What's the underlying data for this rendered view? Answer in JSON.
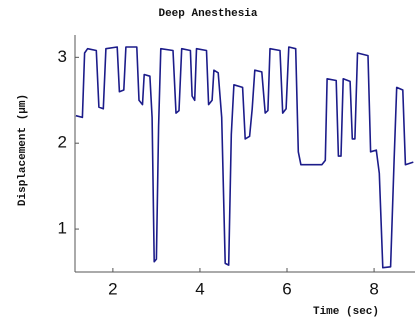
{
  "chart_data": {
    "type": "line",
    "title": "Deep Anesthesia",
    "xlabel": "Time (sec)",
    "ylabel": "Displacement (µm)",
    "xlim": [
      1.13,
      8.94
    ],
    "ylim": [
      0.5,
      3.26
    ],
    "xticks": [
      2,
      4,
      6,
      8
    ],
    "yticks": [
      1,
      2,
      3
    ],
    "series": [
      {
        "color": "#1c1c8a",
        "x": [
          1.15,
          1.3,
          1.35,
          1.42,
          1.62,
          1.68,
          1.78,
          1.84,
          2.1,
          2.15,
          2.25,
          2.3,
          2.55,
          2.6,
          2.68,
          2.72,
          2.85,
          2.9,
          2.95,
          3.0,
          3.05,
          3.1,
          3.38,
          3.45,
          3.52,
          3.58,
          3.78,
          3.82,
          3.88,
          3.92,
          4.15,
          4.2,
          4.28,
          4.32,
          4.42,
          4.5,
          4.58,
          4.66,
          4.72,
          4.78,
          4.98,
          5.04,
          5.14,
          5.2,
          5.26,
          5.42,
          5.5,
          5.56,
          5.61,
          5.84,
          5.9,
          5.98,
          6.04,
          6.2,
          6.26,
          6.32,
          6.8,
          6.88,
          6.92,
          7.13,
          7.18,
          7.24,
          7.29,
          7.45,
          7.5,
          7.56,
          7.62,
          7.86,
          7.92,
          8.05,
          8.12,
          8.2,
          8.38,
          8.46,
          8.52,
          8.66,
          8.72,
          8.9
        ],
        "y": [
          2.32,
          2.3,
          3.05,
          3.1,
          3.08,
          2.42,
          2.4,
          3.1,
          3.12,
          2.6,
          2.62,
          3.12,
          3.12,
          2.5,
          2.45,
          2.8,
          2.78,
          2.3,
          0.62,
          0.65,
          2.2,
          3.1,
          3.08,
          2.35,
          2.38,
          3.1,
          3.08,
          2.55,
          2.5,
          3.1,
          3.08,
          2.45,
          2.5,
          2.85,
          2.82,
          2.3,
          0.6,
          0.58,
          2.1,
          2.68,
          2.65,
          2.05,
          2.08,
          2.4,
          2.85,
          2.83,
          2.35,
          2.38,
          3.1,
          3.08,
          2.35,
          2.4,
          3.12,
          3.1,
          1.9,
          1.75,
          1.75,
          1.8,
          2.75,
          2.73,
          1.85,
          1.85,
          2.75,
          2.72,
          2.05,
          2.05,
          3.05,
          3.02,
          1.9,
          1.92,
          1.65,
          0.55,
          0.56,
          1.8,
          2.65,
          2.62,
          1.75,
          1.78
        ]
      }
    ]
  }
}
